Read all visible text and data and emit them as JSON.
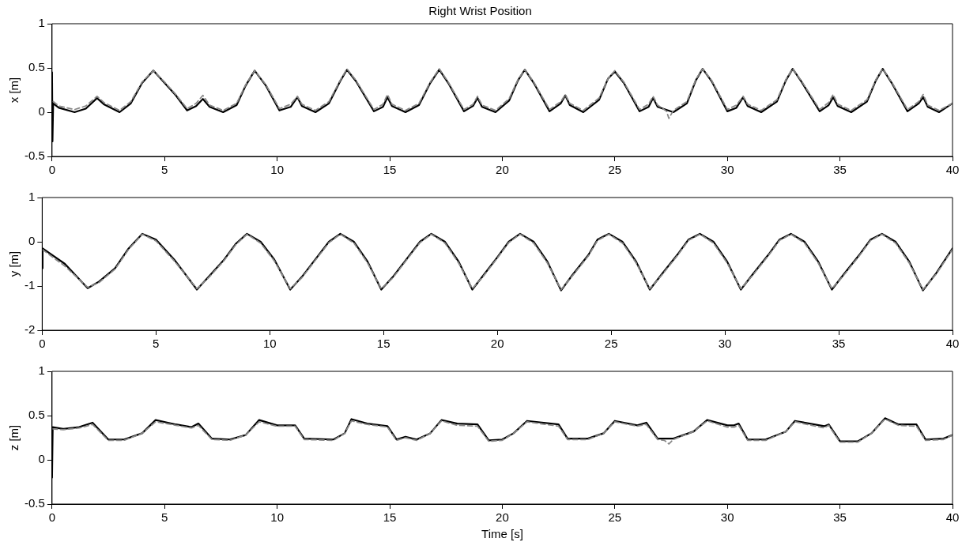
{
  "chart_data": [
    {
      "type": "line",
      "title": "Right Wrist Position",
      "ylabel": "x [m]",
      "xlim": [
        0,
        40
      ],
      "xticks": [
        0,
        5,
        10,
        15,
        20,
        25,
        30,
        35,
        40
      ],
      "ylim": [
        -0.5,
        1
      ],
      "yticks": [
        -0.5,
        0,
        0.5,
        1
      ],
      "grid": false,
      "legend": false,
      "marker": "none",
      "series": [
        {
          "color": "#000000",
          "line_style": "solid",
          "x": [
            0,
            0.02,
            0.05,
            0.3,
            1.0,
            1.5,
            2.0,
            2.3,
            3.0,
            3.5,
            4.0,
            4.5,
            5.0,
            5.5,
            6.0,
            6.4,
            6.7,
            7.0,
            7.6,
            8.2,
            8.6,
            9.0,
            9.5,
            10.1,
            10.6,
            10.9,
            11.1,
            11.7,
            12.3,
            12.8,
            13.1,
            13.5,
            14.3,
            14.7,
            14.9,
            15.1,
            15.7,
            16.3,
            16.8,
            17.2,
            17.6,
            18.3,
            18.7,
            18.9,
            19.1,
            19.7,
            20.3,
            20.7,
            21.0,
            21.4,
            22.1,
            22.6,
            22.8,
            23.0,
            23.6,
            24.3,
            24.7,
            25.0,
            25.4,
            26.1,
            26.5,
            26.7,
            26.9,
            27.6,
            28.2,
            28.6,
            28.9,
            29.3,
            30.0,
            30.4,
            30.7,
            30.9,
            31.5,
            32.2,
            32.6,
            32.9,
            33.3,
            34.1,
            34.5,
            34.7,
            34.9,
            35.5,
            36.2,
            36.6,
            36.9,
            37.3,
            38.0,
            38.5,
            38.7,
            38.9,
            39.4,
            40
          ],
          "values": [
            0.45,
            -0.33,
            0.1,
            0.05,
            0.0,
            0.04,
            0.16,
            0.09,
            0.0,
            0.1,
            0.33,
            0.47,
            0.33,
            0.19,
            0.02,
            0.07,
            0.15,
            0.06,
            0.0,
            0.08,
            0.3,
            0.47,
            0.3,
            0.02,
            0.06,
            0.17,
            0.07,
            0.0,
            0.1,
            0.35,
            0.48,
            0.35,
            0.01,
            0.06,
            0.17,
            0.07,
            0.0,
            0.08,
            0.33,
            0.48,
            0.33,
            0.01,
            0.07,
            0.16,
            0.06,
            0.0,
            0.13,
            0.36,
            0.48,
            0.33,
            0.01,
            0.1,
            0.19,
            0.08,
            0.0,
            0.14,
            0.38,
            0.46,
            0.33,
            0.01,
            0.06,
            0.16,
            0.06,
            0.0,
            0.1,
            0.36,
            0.49,
            0.35,
            0.01,
            0.05,
            0.17,
            0.07,
            0.0,
            0.12,
            0.36,
            0.49,
            0.34,
            0.01,
            0.08,
            0.17,
            0.07,
            0.0,
            0.12,
            0.36,
            0.49,
            0.33,
            0.01,
            0.1,
            0.17,
            0.06,
            0.0,
            0.1
          ]
        },
        {
          "color": "#888888",
          "line_style": "dashed",
          "x": [
            0.05,
            0.3,
            1.0,
            1.5,
            2.0,
            2.3,
            3.0,
            3.5,
            4.0,
            4.5,
            5.0,
            5.5,
            6.0,
            6.4,
            6.7,
            7.0,
            7.6,
            8.2,
            8.6,
            9.0,
            9.5,
            10.1,
            10.6,
            10.9,
            11.1,
            11.7,
            12.3,
            12.8,
            13.1,
            13.5,
            14.3,
            14.7,
            14.9,
            15.1,
            15.7,
            16.3,
            16.8,
            17.2,
            17.6,
            18.3,
            18.7,
            18.9,
            19.1,
            19.7,
            20.3,
            20.7,
            21.0,
            21.4,
            22.1,
            22.6,
            22.8,
            23.0,
            23.6,
            24.3,
            24.7,
            25.0,
            25.4,
            26.1,
            26.5,
            26.7,
            26.9,
            27.3,
            27.4,
            27.6,
            28.2,
            28.6,
            28.9,
            29.3,
            30.0,
            30.4,
            30.7,
            30.9,
            31.5,
            32.2,
            32.6,
            32.9,
            33.3,
            34.1,
            34.5,
            34.7,
            34.9,
            35.5,
            36.2,
            36.6,
            36.9,
            37.3,
            38.0,
            38.5,
            38.7,
            38.9,
            39.4,
            40
          ],
          "values": [
            0.12,
            0.07,
            0.03,
            0.07,
            0.18,
            0.11,
            0.02,
            0.12,
            0.34,
            0.47,
            0.34,
            0.2,
            0.04,
            0.1,
            0.19,
            0.08,
            0.02,
            0.1,
            0.31,
            0.47,
            0.31,
            0.04,
            0.09,
            0.18,
            0.09,
            0.02,
            0.12,
            0.36,
            0.49,
            0.36,
            0.03,
            0.09,
            0.2,
            0.09,
            0.02,
            0.1,
            0.34,
            0.49,
            0.34,
            0.03,
            0.09,
            0.18,
            0.08,
            0.02,
            0.15,
            0.37,
            0.48,
            0.34,
            0.03,
            0.12,
            0.2,
            0.1,
            0.02,
            0.16,
            0.38,
            0.47,
            0.34,
            0.03,
            0.09,
            0.18,
            0.08,
            0.01,
            -0.07,
            0.02,
            0.12,
            0.37,
            0.49,
            0.36,
            0.03,
            0.08,
            0.18,
            0.09,
            0.02,
            0.14,
            0.37,
            0.49,
            0.35,
            0.03,
            0.11,
            0.2,
            0.09,
            0.02,
            0.14,
            0.37,
            0.49,
            0.34,
            0.03,
            0.12,
            0.2,
            0.08,
            0.02,
            0.1
          ]
        }
      ]
    },
    {
      "type": "line",
      "ylabel": "y [m]",
      "xlim": [
        0,
        40
      ],
      "xticks": [
        0,
        5,
        10,
        15,
        20,
        25,
        30,
        35,
        40
      ],
      "ylim": [
        -2,
        1
      ],
      "yticks": [
        -2,
        -1,
        0,
        1
      ],
      "grid": false,
      "legend": false,
      "marker": "none",
      "series": [
        {
          "color": "#000000",
          "line_style": "solid",
          "x": [
            0,
            0.02,
            1.0,
            2.0,
            2.5,
            3.2,
            3.8,
            4.4,
            5.0,
            5.8,
            6.8,
            7.3,
            8.0,
            8.5,
            9.0,
            9.6,
            10.2,
            10.9,
            11.4,
            12.0,
            12.6,
            13.1,
            13.7,
            14.3,
            14.9,
            15.4,
            16.0,
            16.6,
            17.1,
            17.7,
            18.3,
            18.9,
            19.4,
            20.0,
            20.5,
            21.0,
            21.6,
            22.2,
            22.8,
            23.3,
            24.0,
            24.4,
            24.9,
            25.5,
            26.1,
            26.7,
            27.2,
            27.9,
            28.4,
            28.9,
            29.5,
            30.1,
            30.7,
            31.2,
            31.9,
            32.4,
            32.9,
            33.5,
            34.1,
            34.7,
            35.2,
            35.9,
            36.4,
            36.9,
            37.5,
            38.1,
            38.7,
            39.3,
            40
          ],
          "values": [
            -0.6,
            -0.15,
            -0.5,
            -1.05,
            -0.9,
            -0.6,
            -0.15,
            0.18,
            0.05,
            -0.4,
            -1.08,
            -0.8,
            -0.4,
            -0.05,
            0.18,
            0.0,
            -0.4,
            -1.08,
            -0.8,
            -0.4,
            0.0,
            0.18,
            0.0,
            -0.45,
            -1.08,
            -0.8,
            -0.4,
            0.0,
            0.18,
            0.0,
            -0.45,
            -1.08,
            -0.75,
            -0.35,
            0.0,
            0.18,
            0.0,
            -0.45,
            -1.1,
            -0.75,
            -0.3,
            0.05,
            0.18,
            0.0,
            -0.45,
            -1.08,
            -0.75,
            -0.3,
            0.05,
            0.18,
            0.0,
            -0.45,
            -1.08,
            -0.75,
            -0.3,
            0.05,
            0.18,
            0.0,
            -0.45,
            -1.08,
            -0.75,
            -0.3,
            0.05,
            0.18,
            0.0,
            -0.45,
            -1.1,
            -0.7,
            -0.15
          ]
        },
        {
          "color": "#888888",
          "line_style": "dashed",
          "x": [
            0.02,
            1.0,
            2.0,
            2.5,
            3.2,
            3.8,
            4.4,
            5.0,
            5.8,
            6.8,
            7.3,
            8.0,
            8.5,
            9.0,
            9.6,
            10.2,
            10.9,
            11.4,
            12.0,
            12.6,
            13.1,
            13.7,
            14.3,
            14.9,
            15.4,
            16.0,
            16.6,
            17.1,
            17.7,
            18.3,
            18.9,
            19.4,
            20.0,
            20.5,
            21.0,
            21.6,
            22.2,
            22.8,
            23.3,
            24.0,
            24.4,
            24.9,
            25.5,
            26.1,
            26.7,
            27.2,
            27.9,
            28.4,
            28.9,
            29.5,
            30.1,
            30.7,
            31.2,
            31.9,
            32.4,
            32.9,
            33.5,
            34.1,
            34.7,
            35.2,
            35.9,
            36.4,
            36.9,
            37.5,
            38.1,
            38.7,
            39.3,
            40
          ],
          "values": [
            -0.18,
            -0.55,
            -1.03,
            -0.92,
            -0.62,
            -0.17,
            0.17,
            0.02,
            -0.43,
            -1.06,
            -0.82,
            -0.42,
            -0.07,
            0.17,
            -0.03,
            -0.43,
            -1.06,
            -0.82,
            -0.42,
            -0.02,
            0.17,
            -0.03,
            -0.48,
            -1.06,
            -0.82,
            -0.42,
            -0.02,
            0.17,
            -0.03,
            -0.48,
            -1.06,
            -0.77,
            -0.37,
            -0.02,
            0.17,
            -0.03,
            -0.48,
            -1.08,
            -0.77,
            -0.32,
            0.03,
            0.17,
            -0.03,
            -0.48,
            -1.06,
            -0.77,
            -0.32,
            0.03,
            0.17,
            -0.03,
            -0.48,
            -1.06,
            -0.77,
            -0.32,
            0.03,
            0.17,
            -0.03,
            -0.48,
            -1.06,
            -0.77,
            -0.32,
            0.03,
            0.17,
            -0.03,
            -0.48,
            -1.08,
            -0.72,
            -0.17
          ]
        }
      ]
    },
    {
      "type": "line",
      "xlabel": "Time [s]",
      "ylabel": "z [m]",
      "xlim": [
        0,
        40
      ],
      "xticks": [
        0,
        5,
        10,
        15,
        20,
        25,
        30,
        35,
        40
      ],
      "ylim": [
        -0.5,
        1
      ],
      "yticks": [
        -0.5,
        0,
        0.5,
        1
      ],
      "grid": false,
      "legend": false,
      "marker": "none",
      "series": [
        {
          "color": "#000000",
          "line_style": "solid",
          "x": [
            0,
            0.03,
            0.5,
            1.2,
            1.8,
            2.5,
            3.2,
            4.0,
            4.6,
            5.5,
            6.2,
            6.5,
            7.1,
            7.9,
            8.6,
            9.2,
            10.0,
            10.8,
            11.2,
            12.5,
            13.0,
            13.3,
            14.0,
            14.9,
            15.3,
            15.7,
            16.2,
            16.8,
            17.3,
            18.0,
            18.9,
            19.4,
            20.0,
            20.5,
            21.1,
            22.5,
            22.9,
            23.8,
            24.5,
            25.0,
            26.0,
            26.4,
            26.9,
            27.6,
            28.5,
            29.1,
            30.0,
            30.3,
            30.5,
            30.9,
            31.7,
            32.6,
            33.0,
            34.3,
            34.5,
            35.0,
            35.8,
            36.4,
            37.0,
            37.6,
            38.4,
            38.8,
            39.6,
            40
          ],
          "values": [
            -0.2,
            0.37,
            0.35,
            0.37,
            0.42,
            0.23,
            0.23,
            0.3,
            0.45,
            0.4,
            0.37,
            0.41,
            0.24,
            0.23,
            0.28,
            0.45,
            0.39,
            0.39,
            0.24,
            0.23,
            0.3,
            0.46,
            0.41,
            0.38,
            0.23,
            0.26,
            0.23,
            0.3,
            0.45,
            0.41,
            0.4,
            0.22,
            0.23,
            0.3,
            0.44,
            0.4,
            0.24,
            0.24,
            0.3,
            0.44,
            0.39,
            0.42,
            0.24,
            0.24,
            0.32,
            0.45,
            0.39,
            0.39,
            0.41,
            0.23,
            0.23,
            0.32,
            0.44,
            0.38,
            0.4,
            0.21,
            0.21,
            0.3,
            0.47,
            0.4,
            0.4,
            0.23,
            0.24,
            0.28
          ]
        },
        {
          "color": "#888888",
          "line_style": "dashed",
          "x": [
            0.03,
            0.5,
            1.2,
            1.8,
            2.5,
            3.2,
            4.0,
            4.6,
            5.5,
            6.2,
            6.5,
            7.1,
            7.9,
            8.6,
            9.2,
            10.0,
            10.8,
            11.2,
            12.5,
            13.0,
            13.3,
            14.0,
            14.9,
            15.3,
            15.7,
            16.2,
            16.8,
            17.3,
            18.0,
            18.9,
            19.4,
            20.0,
            20.5,
            21.1,
            22.5,
            22.9,
            23.8,
            24.5,
            25.0,
            26.0,
            26.4,
            26.9,
            27.2,
            27.4,
            27.6,
            28.5,
            29.1,
            30.0,
            30.3,
            30.5,
            30.9,
            31.7,
            32.6,
            33.0,
            34.3,
            34.5,
            35.0,
            35.8,
            36.4,
            37.0,
            37.6,
            38.4,
            38.8,
            39.6,
            40
          ],
          "values": [
            0.35,
            0.34,
            0.36,
            0.4,
            0.22,
            0.22,
            0.3,
            0.43,
            0.39,
            0.36,
            0.39,
            0.23,
            0.22,
            0.28,
            0.43,
            0.38,
            0.38,
            0.23,
            0.22,
            0.3,
            0.44,
            0.4,
            0.37,
            0.22,
            0.25,
            0.22,
            0.3,
            0.44,
            0.39,
            0.38,
            0.21,
            0.22,
            0.3,
            0.43,
            0.38,
            0.23,
            0.23,
            0.3,
            0.43,
            0.38,
            0.4,
            0.23,
            0.22,
            0.18,
            0.23,
            0.32,
            0.44,
            0.37,
            0.37,
            0.39,
            0.22,
            0.22,
            0.32,
            0.43,
            0.36,
            0.39,
            0.2,
            0.2,
            0.3,
            0.46,
            0.39,
            0.38,
            0.22,
            0.23,
            0.28
          ]
        }
      ]
    }
  ]
}
